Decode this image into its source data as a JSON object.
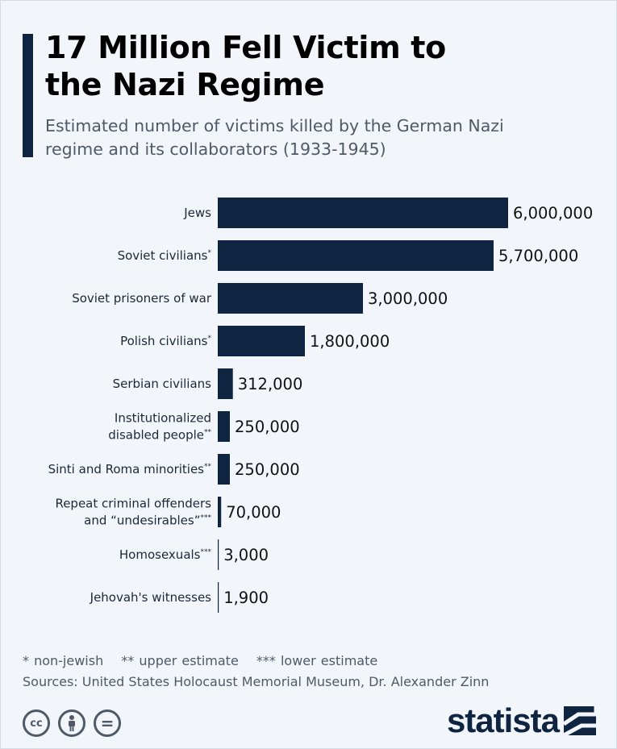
{
  "header": {
    "title_line1": "17 Million Fell Victim to",
    "title_line2": "the Nazi Regime",
    "subtitle_line1": "Estimated number of victims killed by the German Nazi",
    "subtitle_line2": "regime and its collaborators (1933-1945)"
  },
  "chart_data": {
    "type": "bar",
    "orientation": "horizontal",
    "title": "17 Million Fell Victim to the Nazi Regime",
    "subtitle": "Estimated number of victims killed by the German Nazi regime and its collaborators (1933-1945)",
    "categories": [
      {
        "lines": [
          "Jews"
        ],
        "mark": ""
      },
      {
        "lines": [
          "Soviet civilians"
        ],
        "mark": "*"
      },
      {
        "lines": [
          "Soviet prisoners of war"
        ],
        "mark": ""
      },
      {
        "lines": [
          "Polish civilians"
        ],
        "mark": "*"
      },
      {
        "lines": [
          "Serbian civilians"
        ],
        "mark": ""
      },
      {
        "lines": [
          "Institutionalized",
          "disabled people"
        ],
        "mark": "**"
      },
      {
        "lines": [
          "Sinti and Roma minorities"
        ],
        "mark": "**"
      },
      {
        "lines": [
          "Repeat criminal offenders",
          "and “undesirables”"
        ],
        "mark": "***"
      },
      {
        "lines": [
          "Homosexuals"
        ],
        "mark": "***"
      },
      {
        "lines": [
          "Jehovah's witnesses"
        ],
        "mark": ""
      }
    ],
    "values": [
      6000000,
      5700000,
      3000000,
      1800000,
      312000,
      250000,
      250000,
      70000,
      3000,
      1900
    ],
    "value_labels": [
      "6,000,000",
      "5,700,000",
      "3,000,000",
      "1,800,000",
      "312,000",
      "250,000",
      "250,000",
      "70,000",
      "3,000",
      "1,900"
    ],
    "xlim": [
      0,
      6000000
    ],
    "bar_color": "#0f2440",
    "grid": false,
    "legend": "none"
  },
  "footer": {
    "note_1": "* non-jewish",
    "note_2": "** upper estimate",
    "note_3": "*** lower estimate",
    "sources": "Sources: United States Holocaust Memorial Museum, Dr. Alexander Zinn",
    "cc_icons": [
      "cc-icon",
      "attribution-icon",
      "no-derivatives-icon"
    ],
    "cc_label": "cc",
    "equal_label": "=",
    "logo": "statista"
  }
}
